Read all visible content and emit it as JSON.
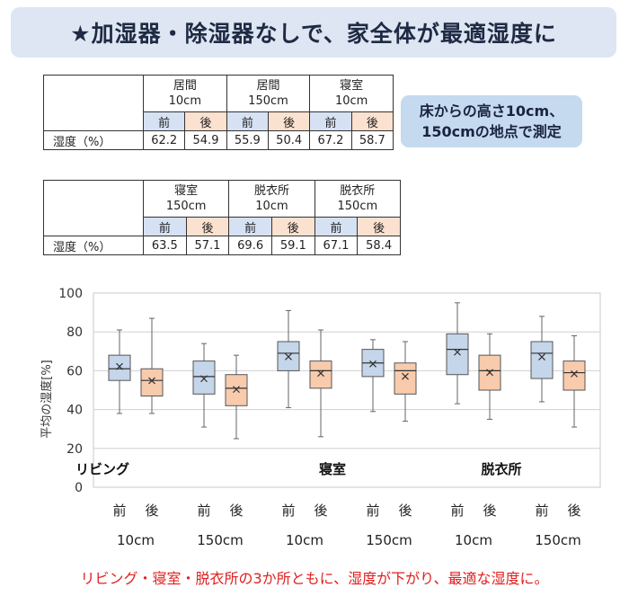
{
  "banner": {
    "text": "★加湿器・除湿器なしで、家全体が最適湿度に"
  },
  "note": {
    "line1": "床からの高さ10cm、",
    "line2": "150cmの地点で測定"
  },
  "table_top": {
    "row_label": "湿度（%）",
    "columns": [
      {
        "place": "居間",
        "height": "10cm",
        "before_label": "前",
        "after_label": "後",
        "before": "62.2",
        "after": "54.9"
      },
      {
        "place": "居間",
        "height": "150cm",
        "before_label": "前",
        "after_label": "後",
        "before": "55.9",
        "after": "50.4"
      },
      {
        "place": "寝室",
        "height": "10cm",
        "before_label": "前",
        "after_label": "後",
        "before": "67.2",
        "after": "58.7"
      }
    ]
  },
  "table_bottom": {
    "row_label": "湿度（%）",
    "columns": [
      {
        "place": "寝室",
        "height": "150cm",
        "before_label": "前",
        "after_label": "後",
        "before": "63.5",
        "after": "57.1"
      },
      {
        "place": "脱衣所",
        "height": "10cm",
        "before_label": "前",
        "after_label": "後",
        "before": "69.6",
        "after": "59.1"
      },
      {
        "place": "脱衣所",
        "height": "150cm",
        "before_label": "前",
        "after_label": "後",
        "before": "67.1",
        "after": "58.4"
      }
    ]
  },
  "chart_data": {
    "type": "boxplot",
    "ylabel": "平均の湿度[%]",
    "ylim": [
      0,
      100
    ],
    "yticks": [
      "0",
      "20",
      "40",
      "60",
      "80",
      "100"
    ],
    "grid": true,
    "colors": {
      "before": "#c5d5ea",
      "after": "#f8cbad",
      "stroke": "#555555"
    },
    "room_labels": [
      "リビング",
      "寝室",
      "脱衣所"
    ],
    "groups": [
      {
        "height_label": "10cm",
        "before_label": "前",
        "after_label": "後",
        "before": {
          "min": 38,
          "q1": 55,
          "median": 61,
          "q3": 68,
          "max": 81,
          "mean": 62.2
        },
        "after": {
          "min": 38,
          "q1": 47,
          "median": 55,
          "q3": 61,
          "max": 87,
          "mean": 54.9
        }
      },
      {
        "height_label": "150cm",
        "before_label": "前",
        "after_label": "後",
        "before": {
          "min": 31,
          "q1": 48,
          "median": 57,
          "q3": 65,
          "max": 74,
          "mean": 55.9
        },
        "after": {
          "min": 25,
          "q1": 42,
          "median": 51,
          "q3": 58,
          "max": 68,
          "mean": 50.4
        }
      },
      {
        "height_label": "10cm",
        "before_label": "前",
        "after_label": "後",
        "before": {
          "min": 41,
          "q1": 60,
          "median": 69,
          "q3": 75,
          "max": 91,
          "mean": 67.2
        },
        "after": {
          "min": 26,
          "q1": 51,
          "median": 60,
          "q3": 65,
          "max": 81,
          "mean": 58.7
        }
      },
      {
        "height_label": "150cm",
        "before_label": "前",
        "after_label": "後",
        "before": {
          "min": 39,
          "q1": 57,
          "median": 64,
          "q3": 71,
          "max": 76,
          "mean": 63.5
        },
        "after": {
          "min": 34,
          "q1": 48,
          "median": 60,
          "q3": 64,
          "max": 75,
          "mean": 57.1
        }
      },
      {
        "height_label": "10cm",
        "before_label": "前",
        "after_label": "後",
        "before": {
          "min": 43,
          "q1": 58,
          "median": 71,
          "q3": 79,
          "max": 95,
          "mean": 69.6
        },
        "after": {
          "min": 35,
          "q1": 50,
          "median": 60,
          "q3": 68,
          "max": 79,
          "mean": 59.1
        }
      },
      {
        "height_label": "150cm",
        "before_label": "前",
        "after_label": "後",
        "before": {
          "min": 44,
          "q1": 56,
          "median": 69,
          "q3": 75,
          "max": 88,
          "mean": 67.1
        },
        "after": {
          "min": 31,
          "q1": 50,
          "median": 59,
          "q3": 65,
          "max": 78,
          "mean": 58.4
        }
      }
    ]
  },
  "footer": {
    "text": "リビング・寝室・脱衣所の3か所ともに、湿度が下がり、最適な湿度に。"
  }
}
